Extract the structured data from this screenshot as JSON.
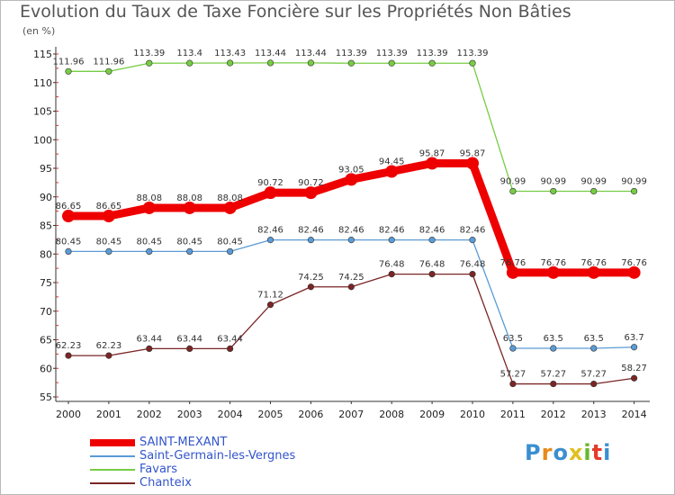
{
  "title": "Evolution du Taux de Taxe Foncière sur les Propriétés Non Bâties",
  "subtitle": "(en %)",
  "logo": {
    "letters": [
      "P",
      "r",
      "o",
      "x",
      "i",
      "t",
      "i"
    ],
    "colors": [
      "#3a8fd0",
      "#e88a1a",
      "#3a8fd0",
      "#e0c020",
      "#66b82e",
      "#e63a2a",
      "#3a8fd0"
    ]
  },
  "chart_data": {
    "type": "line",
    "title": "Evolution du Taux de Taxe Foncière sur les Propriétés Non Bâties",
    "ylabel": "(en %)",
    "xlabel": "",
    "ylim": [
      55,
      115
    ],
    "yticks": [
      55,
      60,
      65,
      70,
      75,
      80,
      85,
      90,
      95,
      100,
      105,
      110,
      115
    ],
    "x": [
      "2000",
      "2001",
      "2002",
      "2003",
      "2004",
      "2005",
      "2006",
      "2007",
      "2008",
      "2009",
      "2010",
      "2011",
      "2012",
      "2013",
      "2014"
    ],
    "grid": false,
    "legend_position": "bottom-left",
    "series": [
      {
        "name": "SAINT-MEXANT",
        "color": "#ee0000",
        "emphasis": "thick",
        "values": [
          86.65,
          86.65,
          88.08,
          88.08,
          88.08,
          90.72,
          90.72,
          93.05,
          94.45,
          95.87,
          95.87,
          76.76,
          76.76,
          76.76,
          76.76
        ],
        "labels": [
          "86.65",
          "86.65",
          "88.08",
          "88.08",
          "88.08",
          "90.72",
          "90.72",
          "93.05",
          "94.45",
          "95.87",
          "95.87",
          "76.76",
          "76.76",
          "76.76",
          "76.76"
        ]
      },
      {
        "name": "Saint-Germain-les-Vergnes",
        "color": "#5b9bd5",
        "emphasis": "thin",
        "values": [
          80.45,
          80.45,
          80.45,
          80.45,
          80.45,
          82.46,
          82.46,
          82.46,
          82.46,
          82.46,
          82.46,
          63.5,
          63.5,
          63.5,
          63.7
        ],
        "labels": [
          "80.45",
          "80.45",
          "80.45",
          "80.45",
          "80.45",
          "82.46",
          "82.46",
          "82.46",
          "82.46",
          "82.46",
          "82.46",
          "63.5",
          "63.5",
          "63.5",
          "63.7"
        ]
      },
      {
        "name": "Favars",
        "color": "#77cc44",
        "emphasis": "thin",
        "values": [
          111.96,
          111.96,
          113.39,
          113.4,
          113.43,
          113.44,
          113.44,
          113.39,
          113.39,
          113.39,
          113.39,
          90.99,
          90.99,
          90.99,
          90.99
        ],
        "labels": [
          "111.96",
          "111.96",
          "113.39",
          "113.4",
          "113.43",
          "113.44",
          "113.44",
          "113.39",
          "113.39",
          "113.39",
          "113.39",
          "90.99",
          "90.99",
          "90.99",
          "90.99"
        ]
      },
      {
        "name": "Chanteix",
        "color": "#7a2626",
        "emphasis": "thin",
        "values": [
          62.23,
          62.23,
          63.44,
          63.44,
          63.44,
          71.12,
          74.25,
          74.25,
          76.48,
          76.48,
          76.48,
          57.27,
          57.27,
          57.27,
          58.27
        ],
        "labels": [
          "62.23",
          "62.23",
          "63.44",
          "63.44",
          "63.44",
          "71.12",
          "74.25",
          "74.25",
          "76.48",
          "76.48",
          "76.48",
          "57.27",
          "57.27",
          "57.27",
          "58.27"
        ]
      }
    ]
  }
}
